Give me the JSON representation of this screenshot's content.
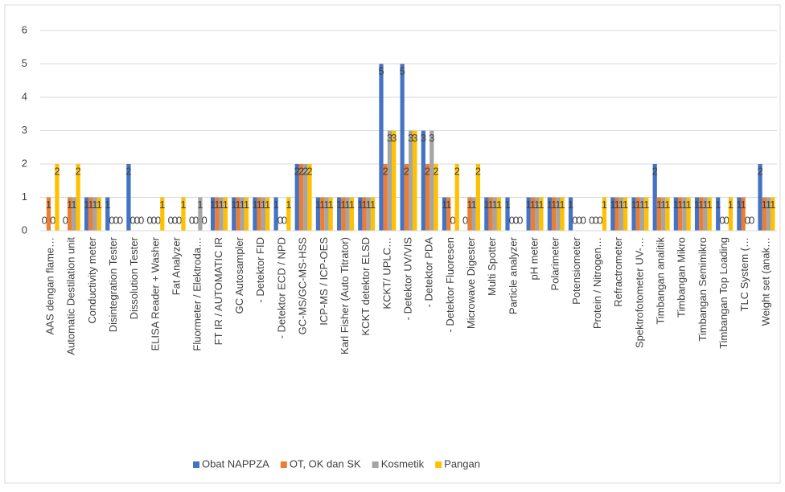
{
  "chart_data": {
    "type": "bar",
    "categories": [
      "AAS dengan flame…",
      "Automatic Destilation unit",
      "Conductivity meter",
      "Disintegration Tester",
      "Dissolution Tester",
      "ELISA Reader + Washer",
      "Fat Analyzer",
      "Fluormeter / Elektroda…",
      "FT IR / AUTOMATIC IR",
      "GC Autosampler",
      "- Detektor FID",
      "- Detektor ECD / NPD",
      "GC-MS/GC-MS-HSS",
      "ICP-MS / ICP-OES",
      "Karl Fisher (Auto Titrator)",
      "KCKT detektor ELSD",
      "KCKT/ UPLC…",
      "- Detektor UV/VIS",
      "- Detektor PDA",
      "- Detektor Fluoresen",
      "Microwave Digester",
      "Multi Spotter",
      "Particle analyzer",
      "pH meter",
      "Polarimeter",
      "Potensiometer",
      "Protein / Nitrogen…",
      "Refractrometer",
      "Spektrofotometer UV-…",
      "Timbangan analitik",
      "Timbangan Mikro",
      "Timbangan Semimikro",
      "Timbangan Top Loading",
      "TLC System (…",
      "Weight set (anak…"
    ],
    "series": [
      {
        "name": "Obat NAPPZA",
        "color": "#4472c4",
        "values": [
          0,
          0,
          1,
          1,
          2,
          0,
          0,
          0,
          1,
          1,
          1,
          1,
          2,
          1,
          1,
          1,
          5,
          5,
          3,
          1,
          0,
          1,
          1,
          1,
          1,
          1,
          0,
          1,
          1,
          2,
          1,
          1,
          1,
          1,
          2
        ]
      },
      {
        "name": "OT, OK dan SK",
        "color": "#ed7d31",
        "values": [
          1,
          1,
          1,
          0,
          0,
          0,
          0,
          0,
          1,
          1,
          1,
          0,
          2,
          1,
          1,
          1,
          2,
          2,
          2,
          1,
          1,
          1,
          0,
          1,
          1,
          0,
          0,
          1,
          1,
          1,
          1,
          1,
          0,
          1,
          1
        ]
      },
      {
        "name": "Kosmetik",
        "color": "#a5a5a5",
        "values": [
          0,
          1,
          1,
          0,
          0,
          0,
          0,
          1,
          1,
          1,
          1,
          0,
          2,
          1,
          1,
          1,
          3,
          3,
          3,
          0,
          1,
          1,
          0,
          1,
          1,
          0,
          0,
          1,
          1,
          1,
          1,
          1,
          0,
          0,
          1
        ]
      },
      {
        "name": "Pangan",
        "color": "#ffc000",
        "values": [
          2,
          2,
          1,
          0,
          0,
          1,
          1,
          0,
          1,
          1,
          1,
          1,
          2,
          1,
          1,
          1,
          3,
          3,
          2,
          2,
          2,
          1,
          0,
          1,
          1,
          0,
          1,
          1,
          1,
          1,
          1,
          1,
          1,
          0,
          1
        ]
      }
    ],
    "ylim": [
      0,
      6
    ],
    "yticks": [
      0,
      1,
      2,
      3,
      4,
      5,
      6
    ],
    "grid": true,
    "legend": "bottom"
  }
}
